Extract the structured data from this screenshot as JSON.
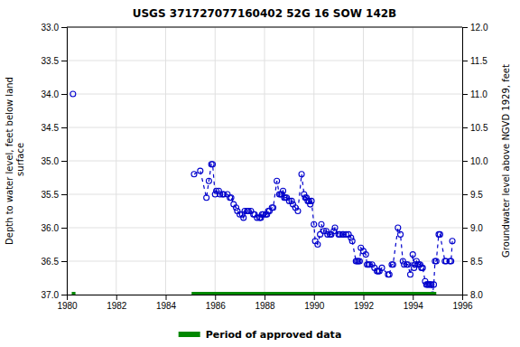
{
  "chart_data": {
    "type": "line",
    "title": "USGS 371727077160402 52G 16 SOW 142B",
    "ylabel": "Depth to water level, feet below land\n surface",
    "y2label": "Groundwater level above NGVD 1929, feet",
    "xlim": [
      1980,
      1996
    ],
    "xticks": [
      1980,
      1982,
      1984,
      1986,
      1988,
      1990,
      1992,
      1994,
      1996
    ],
    "ylim": [
      37.0,
      33.0
    ],
    "yticks": [
      {
        "value": 33.0,
        "label": "33.0"
      },
      {
        "value": 33.5,
        "label": "33.5"
      },
      {
        "value": 34.0,
        "label": "34.0"
      },
      {
        "value": 34.5,
        "label": "34.5"
      },
      {
        "value": 35.0,
        "label": "35.0"
      },
      {
        "value": 35.5,
        "label": "35.5"
      },
      {
        "value": 36.0,
        "label": "36.0"
      },
      {
        "value": 36.5,
        "label": "36.5"
      },
      {
        "value": 37.0,
        "label": "37.0"
      }
    ],
    "y2lim": [
      8.0,
      12.0
    ],
    "y2ticks": [
      {
        "value": 8.0,
        "label": "8.0"
      },
      {
        "value": 8.5,
        "label": "8.5"
      },
      {
        "value": 9.0,
        "label": "9.0"
      },
      {
        "value": 9.5,
        "label": "9.5"
      },
      {
        "value": 10.0,
        "label": "10.0"
      },
      {
        "value": 10.5,
        "label": "10.5"
      },
      {
        "value": 11.0,
        "label": "11.0"
      },
      {
        "value": 11.5,
        "label": "11.5"
      },
      {
        "value": 12.0,
        "label": "12.0"
      }
    ],
    "grid": true,
    "legend": "bottom",
    "series": [
      {
        "type": "line",
        "color": "#0000CC",
        "line_style": "dashed",
        "marker": "open-circle",
        "x": [
          1980.25,
          null,
          1985.15,
          1985.4,
          1985.65,
          1985.75,
          1985.85,
          1985.9,
          1986.0,
          1986.05,
          1986.15,
          1986.2,
          1986.3,
          1986.35,
          1986.5,
          1986.6,
          1986.65,
          1986.75,
          1986.85,
          1986.9,
          1987.0,
          1987.1,
          1987.15,
          1987.2,
          1987.3,
          1987.35,
          1987.45,
          1987.55,
          1987.6,
          1987.7,
          1987.8,
          1987.85,
          1987.9,
          1987.95,
          1988.05,
          1988.1,
          1988.15,
          1988.2,
          1988.3,
          1988.35,
          1988.5,
          1988.6,
          1988.65,
          1988.7,
          1988.75,
          1988.8,
          1988.85,
          1988.9,
          1989.0,
          1989.1,
          1989.15,
          1989.25,
          1989.35,
          1989.5,
          1989.6,
          1989.65,
          1989.7,
          1989.75,
          1989.8,
          1989.85,
          1989.9,
          1990.0,
          1990.05,
          1990.15,
          1990.25,
          1990.3,
          1990.4,
          1990.5,
          1990.55,
          1990.65,
          1990.7,
          1990.8,
          1990.85,
          1991.0,
          1991.05,
          1991.15,
          1991.2,
          1991.3,
          1991.4,
          1991.5,
          1991.55,
          1991.7,
          1991.75,
          1991.8,
          1991.85,
          1991.9,
          1992.0,
          1992.1,
          1992.15,
          1992.2,
          1992.25,
          1992.35,
          1992.45,
          1992.55,
          1992.6,
          1992.65,
          1992.75,
          1993.0,
          1993.05,
          1993.15,
          1993.2,
          1993.4,
          1993.5,
          1993.6,
          1993.65,
          1993.75,
          1993.8,
          1993.9,
          1994.0,
          1994.05,
          1994.1,
          1994.15,
          1994.2,
          1994.25,
          1994.3,
          1994.35,
          1994.4,
          1994.5,
          1994.55,
          1994.6,
          1994.65,
          1994.7,
          1994.75,
          1994.8,
          1994.85,
          1994.9,
          1994.95,
          1995.05,
          1995.1,
          1995.3,
          1995.35,
          1995.5,
          1995.55,
          1995.6
        ],
        "values": [
          34.0,
          null,
          35.2,
          35.15,
          35.55,
          35.3,
          35.05,
          35.05,
          35.5,
          35.45,
          35.45,
          35.5,
          35.5,
          35.5,
          35.5,
          35.55,
          35.55,
          35.65,
          35.7,
          35.75,
          35.8,
          35.8,
          35.85,
          35.75,
          35.75,
          35.75,
          35.75,
          35.8,
          35.8,
          35.85,
          35.85,
          35.85,
          35.8,
          35.8,
          35.8,
          35.8,
          35.75,
          35.75,
          35.7,
          35.7,
          35.3,
          35.5,
          35.5,
          35.5,
          35.45,
          35.55,
          35.55,
          35.55,
          35.6,
          35.6,
          35.65,
          35.7,
          35.75,
          35.2,
          35.5,
          35.55,
          35.55,
          35.6,
          35.6,
          35.65,
          35.6,
          35.95,
          36.2,
          36.25,
          36.1,
          35.95,
          36.05,
          36.05,
          36.1,
          36.1,
          36.1,
          36.05,
          36.0,
          36.1,
          36.1,
          36.1,
          36.1,
          36.1,
          36.1,
          36.15,
          36.2,
          36.5,
          36.5,
          36.5,
          36.5,
          36.3,
          36.35,
          36.4,
          36.55,
          36.55,
          36.55,
          36.55,
          36.6,
          36.65,
          36.65,
          36.65,
          36.6,
          36.7,
          36.7,
          36.55,
          36.55,
          36.0,
          36.1,
          36.5,
          36.55,
          36.55,
          36.55,
          36.7,
          36.4,
          36.6,
          36.55,
          36.5,
          36.55,
          36.55,
          36.55,
          36.6,
          36.6,
          36.8,
          36.85,
          36.85,
          36.85,
          36.85,
          36.85,
          37.0,
          36.85,
          36.5,
          36.5,
          36.1,
          36.1,
          36.5,
          36.5,
          36.5,
          36.5,
          36.2
        ]
      },
      {
        "type": "span",
        "name": "Period of approved data",
        "color": "#008800",
        "periods": [
          [
            1980.2,
            1980.35
          ],
          [
            1985.05,
            1994.95
          ]
        ],
        "values": [
          37.0,
          37.0
        ]
      }
    ]
  }
}
